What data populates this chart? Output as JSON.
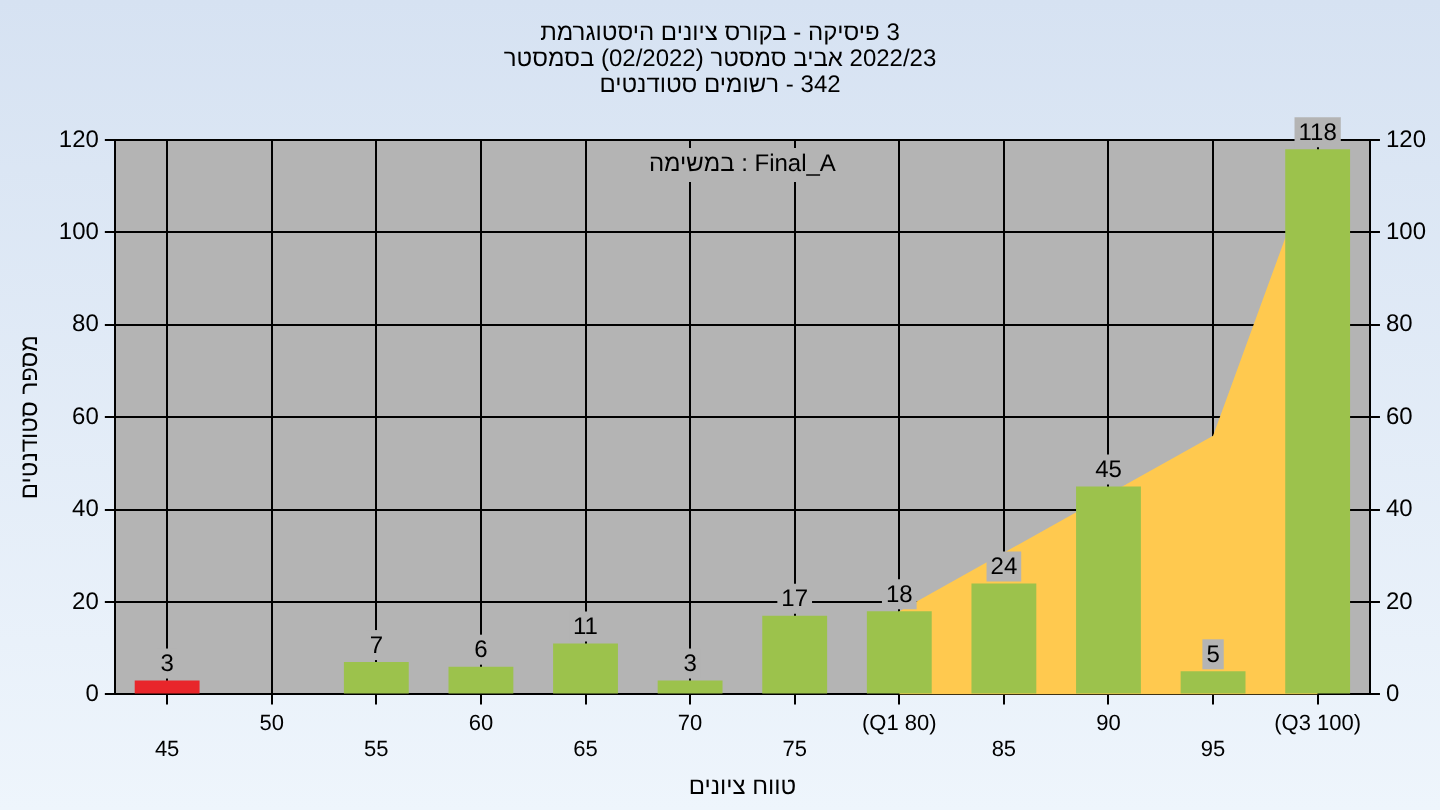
{
  "chart_data": {
    "type": "bar",
    "title": "היסטוגרמת ציונים בקורס - פיסיקה 3",
    "subtitle": "בסמסטר (02/2022) סמסטר אביב 2022/23\nסטודנטים רשומים - 342",
    "xlabel": "טווח ציונים",
    "ylabel": "מספר סטודנטים",
    "annotations": [
      "במשימה : Final_A"
    ],
    "categories": [
      "45",
      "50",
      "55",
      "60",
      "65",
      "70",
      "75",
      "(Q1 80)",
      "85",
      "90",
      "95",
      "(Q3 100)"
    ],
    "series": [
      {
        "type": "area",
        "color": "#ffc94f",
        "values": [
          null,
          null,
          null,
          null,
          null,
          null,
          null,
          18,
          null,
          null,
          56,
          118
        ]
      },
      {
        "colors": [
          "#e8262b",
          "#9cc24c",
          "#9cc24c",
          "#9cc24c",
          "#9cc24c",
          "#9cc24c",
          "#9cc24c",
          "#9cc24c",
          "#9cc24c",
          "#9cc24c",
          "#9cc24c",
          "#9cc24c"
        ],
        "values": [
          3,
          0,
          7,
          6,
          11,
          3,
          17,
          18,
          24,
          45,
          5,
          118
        ],
        "value_labels": [
          "3",
          null,
          "7",
          "6",
          "11",
          "3",
          "17",
          "18",
          "24",
          "45",
          "5",
          "118"
        ]
      }
    ],
    "ylim": [
      0,
      120
    ],
    "yticks": [
      0,
      20,
      40,
      60,
      80,
      100,
      120
    ],
    "y2lim": [
      0,
      120
    ],
    "y2ticks": [
      0,
      20,
      40,
      60,
      80,
      100,
      120
    ],
    "grid": true,
    "legend": false
  }
}
